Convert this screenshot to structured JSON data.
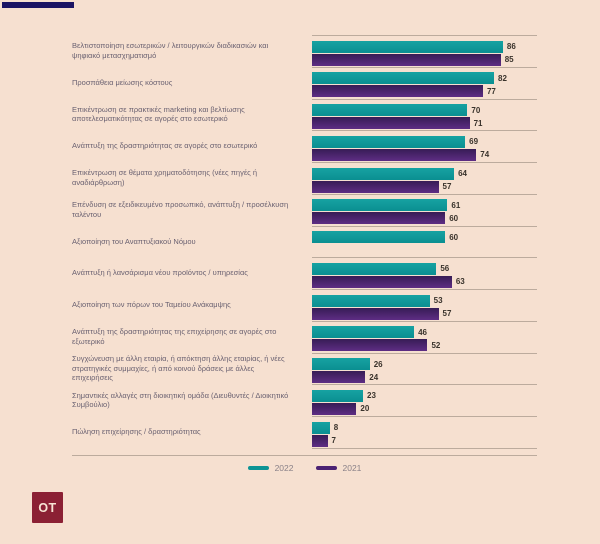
{
  "background_color": "#f6e0d0",
  "top_accent_color": "#1b1464",
  "separator_color": "#bcab9d",
  "label_text_color": "#6a6171",
  "value_text_color": "#39322b",
  "chart_data": {
    "type": "bar",
    "orientation": "horizontal",
    "title": "",
    "xlabel": "",
    "ylabel": "",
    "xlim": [
      0,
      100
    ],
    "grid": false,
    "legend_position": "bottom-center",
    "categories": [
      "Βελτιστοποίηση εσωτερικών / λειτουργικών διαδικασιών και ψηφιακό μετασχηματισμό",
      "Προσπάθεια μείωσης κόστους",
      "Επικέντρωση σε πρακτικές marketing και βελτίωσης αποτελεσματικότητας σε αγορές στο εσωτερικό",
      "Ανάπτυξη της δραστηριότητας σε αγορές στο εσωτερικό",
      "Επικέντρωση σε θέματα χρηματοδότησης (νέες πηγές ή αναδιάρθρωση)",
      "Επένδυση σε εξειδικευμένο προσωπικό, ανάπτυξη / προσέλκυση ταλέντου",
      "Αξιοποίηση του Αναπτυξιακού Νόμου",
      "Ανάπτυξη ή λανσάρισμα νέου προϊόντος / υπηρεσίας",
      "Αξιοποίηση των πόρων του Ταμείου Ανάκαμψης",
      "Ανάπτυξη της δραστηριότητας της επιχείρησης σε αγορές στο εξωτερικό",
      "Συγχώνευση με άλλη εταιρία, ή απόκτηση άλλης εταιρίας, ή νέες στρατηγικές συμμαχίες, ή από κοινού δράσεις με άλλες επιχειρήσεις",
      "Σημαντικές αλλαγές στη διοικητική ομάδα (Διευθυντές / Διοικητικό Συμβούλιο)",
      "Πώληση επιχείρησης / δραστηριότητας"
    ],
    "series": [
      {
        "name": "2022",
        "color": "#0d9495",
        "values": [
          86,
          82,
          70,
          69,
          64,
          61,
          60,
          56,
          53,
          46,
          26,
          23,
          8
        ]
      },
      {
        "name": "2021",
        "color": "#4b2273",
        "values": [
          85,
          77,
          71,
          74,
          57,
          60,
          null,
          63,
          57,
          52,
          24,
          20,
          7
        ]
      }
    ]
  },
  "logo": {
    "text": "OT",
    "bg": "#8b2034",
    "fg": "#f7e4d4"
  }
}
